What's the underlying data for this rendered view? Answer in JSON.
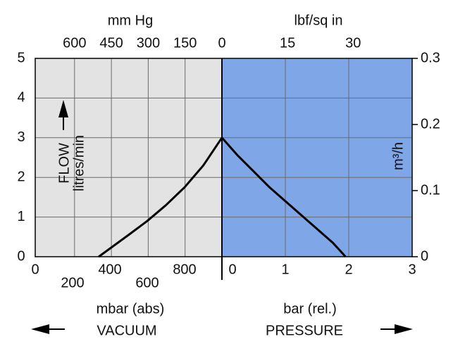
{
  "chart_data": {
    "type": "line",
    "y_label": "FLOW",
    "y_sublabel": "litres/min",
    "ylim": [
      0,
      5
    ],
    "yticks": [
      0,
      1,
      2,
      3,
      4,
      5
    ],
    "y2_label": "m³/h",
    "y2lim": [
      0,
      0.3
    ],
    "y2ticks": [
      0,
      0.1,
      0.2,
      0.3
    ],
    "grid": true,
    "line_color": "#000000",
    "vacuum": {
      "color": "#e3e3e3",
      "x_label": "mbar (abs)",
      "side_label": "VACUUM",
      "xlim": [
        0,
        1000
      ],
      "xticks": [
        0,
        200,
        400,
        600,
        800
      ],
      "top_label": "mm Hg",
      "top_lim": [
        760,
        0
      ],
      "top_ticks": [
        600,
        450,
        300,
        150,
        0
      ],
      "x": [
        340,
        500,
        600,
        700,
        800,
        900,
        1000
      ],
      "values": [
        0,
        0.55,
        0.9,
        1.3,
        1.75,
        2.3,
        3
      ]
    },
    "pressure": {
      "color": "#7fa6e6",
      "x_label": "bar (rel.)",
      "side_label": "PRESSURE",
      "xlim": [
        0,
        3
      ],
      "xticks": [
        0,
        1,
        2,
        3
      ],
      "top_label": "lbf/sq in",
      "top_lim": [
        0,
        43.5
      ],
      "top_ticks": [
        15,
        30
      ],
      "x": [
        0,
        0.25,
        0.5,
        0.75,
        1,
        1.25,
        1.5,
        1.75,
        1.95
      ],
      "values": [
        3,
        2.55,
        2.15,
        1.75,
        1.4,
        1.05,
        0.7,
        0.35,
        0
      ]
    }
  }
}
